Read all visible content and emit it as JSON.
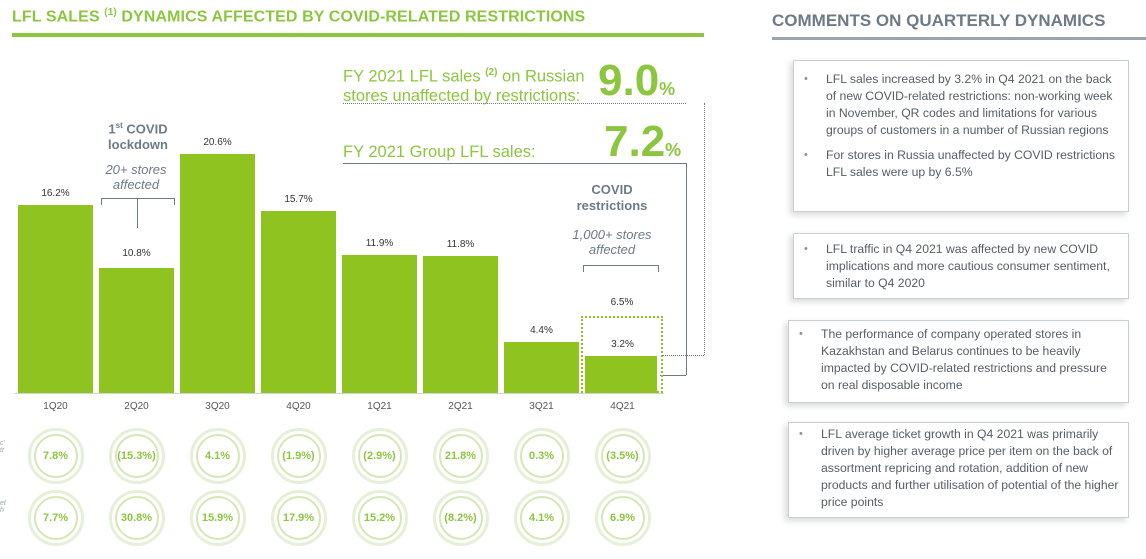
{
  "left_title": {
    "main": "LFL SALES",
    "sup": "(1)",
    "rest": "DYNAMICS AFFECTED BY COVID-RELATED RESTRICTIONS"
  },
  "right_title": "COMMENTS ON QUARTERLY DYNAMICS",
  "kpi": {
    "russian_line1_a": "FY 2021 LFL sales",
    "russian_sup": "(2)",
    "russian_line1_b": "on Russian",
    "russian_line2": "stores unaffected by restrictions:",
    "russian_value": "9.0",
    "group_label": "FY 2021 Group LFL sales:",
    "group_value": "7.2",
    "percent": "%"
  },
  "annotations": {
    "covid_lockdown_sup": "st",
    "covid_lockdown_1": "1",
    "covid_lockdown_a": "COVID",
    "covid_lockdown_b": "lockdown",
    "stores_20_a": "20+ stores",
    "stores_20_b": "affected",
    "covid_restrictions_a": "COVID",
    "covid_restrictions_b": "restrictions",
    "stores_1000_a": "1,000+ stores",
    "stores_1000_b": "affected",
    "q4_extra_value": "6.5%"
  },
  "chart_data": {
    "type": "bar",
    "categories": [
      "1Q20",
      "2Q20",
      "3Q20",
      "4Q20",
      "1Q21",
      "2Q21",
      "3Q21",
      "4Q21"
    ],
    "values": [
      16.2,
      10.8,
      20.6,
      15.7,
      11.9,
      11.8,
      4.4,
      3.2
    ],
    "value_labels": [
      "16.2%",
      "10.8%",
      "20.6%",
      "15.7%",
      "11.9%",
      "11.8%",
      "4.4%",
      "3.2%"
    ],
    "ylim": [
      0,
      22
    ],
    "q4_unaffected_value": 6.5,
    "color": "#8fc31f"
  },
  "circles_row1": [
    "7.8%",
    "(15.3%)",
    "4.1%",
    "(1.9%)",
    "(2.9%)",
    "21.8%",
    "0.3%",
    "(3.5%)"
  ],
  "circles_row2": [
    "7.7%",
    "30.8%",
    "15.9%",
    "17.9%",
    "15.2%",
    "(8.2%)",
    "4.1%",
    "6.9%"
  ],
  "side_labels": {
    "row1": "c'\ntr",
    "row2": "et\nh"
  },
  "comments": [
    {
      "items": [
        "LFL sales increased by 3.2% in Q4 2021 on the back of new COVID-related restrictions: non-working week in November, QR codes and limitations for various groups of customers in a number of Russian regions",
        "For stores in Russia unaffected by COVID restrictions LFL sales were up by 6.5%"
      ]
    },
    {
      "items": [
        "LFL traffic in Q4 2021 was affected by new COVID implications and more cautious consumer sentiment, similar to Q4 2020"
      ]
    },
    {
      "items": [
        "The performance of company operated stores in Kazakhstan and Belarus continues to be heavily impacted by COVID-related restrictions and pressure on real disposable income"
      ]
    },
    {
      "items": [
        "LFL average ticket growth in Q4 2021 was primarily driven by higher average price per item on the back of assortment repricing and rotation, addition of new products and further utilisation of potential of the higher price points"
      ]
    }
  ],
  "colors": {
    "accent": "#8cc63f",
    "heading_gray": "#6d7b88"
  }
}
